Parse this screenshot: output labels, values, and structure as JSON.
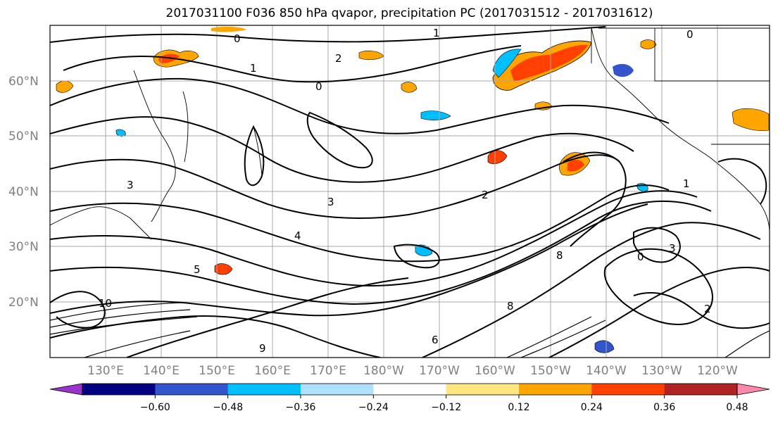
{
  "title": "2017031100 F036 850 hPa qvapor, precipitation PC (2017031512 - 2017031612)",
  "map": {
    "lat_labels": [
      "60°N",
      "50°N",
      "40°N",
      "30°N",
      "20°N"
    ],
    "lon_labels": [
      "130°E",
      "140°E",
      "150°E",
      "160°E",
      "170°E",
      "180°W",
      "170°W",
      "160°W",
      "150°W",
      "140°W",
      "130°W",
      "120°W"
    ],
    "contour_labels": [
      "0",
      "1",
      "2",
      "0",
      "1",
      "2",
      "3",
      "3",
      "4",
      "5",
      "6",
      "8",
      "10",
      "0",
      "1",
      "3",
      "2",
      "0",
      "9",
      "8"
    ],
    "gridline_color": "#a8a8a8"
  },
  "colorbar": {
    "colors": [
      "#9933cc",
      "#000080",
      "#3355cc",
      "#00bfff",
      "#b0e0ff",
      "#ffffff",
      "#ffe680",
      "#ffa500",
      "#ff4000",
      "#b22222",
      "#ff88aa"
    ],
    "tick_labels": [
      "−0.60",
      "−0.48",
      "−0.36",
      "−0.24",
      "−0.12",
      "0.12",
      "0.24",
      "0.36",
      "0.48",
      "0.60"
    ]
  }
}
